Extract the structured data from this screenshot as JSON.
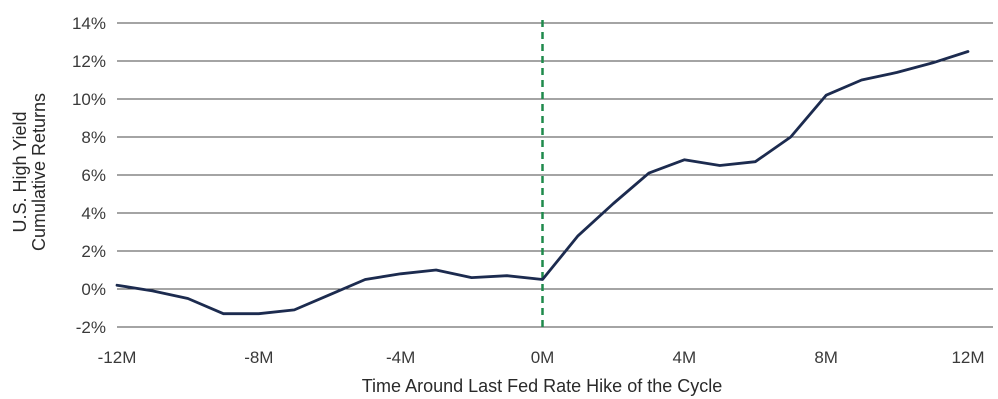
{
  "chart_data": {
    "type": "line",
    "xlabel": "Time Around Last Fed Rate Hike of the Cycle",
    "ylabel_lines": [
      "U.S. High Yield",
      "Cumulative Returns"
    ],
    "x": [
      -12,
      -11,
      -10,
      -9,
      -8,
      -7,
      -6,
      -5,
      -4,
      -3,
      -2,
      -1,
      0,
      1,
      2,
      3,
      4,
      5,
      6,
      7,
      8,
      9,
      10,
      11,
      12
    ],
    "series": [
      {
        "values": [
          0.2,
          -0.1,
          -0.5,
          -1.3,
          -1.3,
          -1.1,
          -0.3,
          0.5,
          0.8,
          1.0,
          0.6,
          0.7,
          0.5,
          2.8,
          4.5,
          6.1,
          6.8,
          6.5,
          6.7,
          8.0,
          10.2,
          11.0,
          11.4,
          11.9,
          12.5
        ],
        "color": "#1c2b4f"
      }
    ],
    "xlim": [
      -12,
      12
    ],
    "ylim": [
      -2,
      14
    ],
    "x_ticks": [
      -12,
      -8,
      -4,
      0,
      4,
      8,
      12
    ],
    "x_tick_labels": [
      "-12M",
      "-8M",
      "-4M",
      "0M",
      "4M",
      "8M",
      "12M"
    ],
    "y_ticks": [
      -2,
      0,
      2,
      4,
      6,
      8,
      10,
      12,
      14
    ],
    "y_tick_labels": [
      "-2%",
      "0%",
      "2%",
      "4%",
      "6%",
      "8%",
      "10%",
      "12%",
      "14%"
    ],
    "grid": "horizontal",
    "reference_line": {
      "x": 0,
      "style": "dashed",
      "color": "#1f8a4c"
    },
    "colors": {
      "line": "#1c2b4f",
      "grid": "#4a4a4a",
      "reference": "#1f8a4c",
      "text": "#3a3a3a"
    }
  }
}
